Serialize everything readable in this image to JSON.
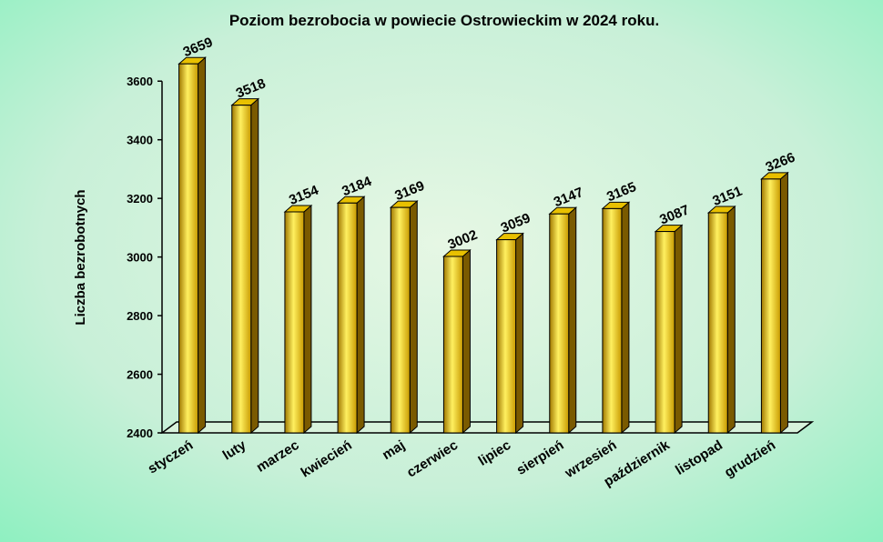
{
  "chart_data": {
    "type": "bar3d",
    "title": "Poziom bezrobocia w powiecie  Ostrowieckim  w 2024 roku.",
    "y_label": "Liczba bezrobotnych",
    "categories": [
      "styczeń",
      "luty",
      "marzec",
      "kwiecień",
      "maj",
      "czerwiec",
      "lipiec",
      "sierpień",
      "wrzesień",
      "październik",
      "listopad",
      "grudzień"
    ],
    "values": [
      3659,
      3518,
      3154,
      3184,
      3169,
      3002,
      3059,
      3147,
      3165,
      3087,
      3151,
      3266
    ],
    "color": "#e8c000",
    "ylim": [
      2400,
      3700
    ],
    "yticks": [
      2400,
      2600,
      2800,
      3000,
      3200,
      3400,
      3600
    ]
  }
}
